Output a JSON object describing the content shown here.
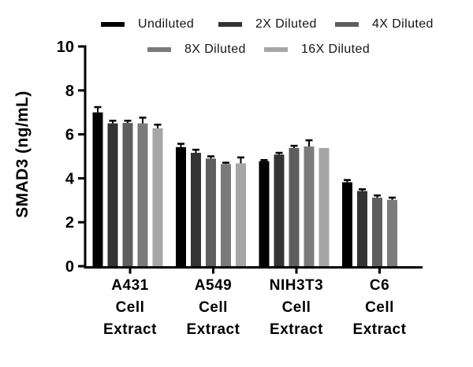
{
  "chart_data": {
    "type": "bar",
    "title": "",
    "ylabel": "SMAD3 (ng/mL)",
    "xlabel": "",
    "ylim": [
      0,
      10
    ],
    "yticks": [
      0,
      2,
      4,
      6,
      8,
      10
    ],
    "grid": false,
    "legend_position": "top",
    "background_color": "#ffffff",
    "axis_color": "#000000",
    "categories": [
      "A431 Cell Extract",
      "A549 Cell Extract",
      "NIH3T3 Cell Extract",
      "C6 Cell Extract"
    ],
    "category_lines": [
      [
        "A431",
        "Cell",
        "Extract"
      ],
      [
        "A549",
        "Cell",
        "Extract"
      ],
      [
        "NIH3T3",
        "Cell",
        "Extract"
      ],
      [
        "C6",
        "Cell",
        "Extract"
      ]
    ],
    "series": [
      {
        "name": "Undiluted",
        "color": "#000000",
        "values": [
          7.0,
          5.42,
          4.78,
          3.82
        ],
        "errors": [
          0.24,
          0.15,
          0.05,
          0.1
        ]
      },
      {
        "name": "2X Diluted",
        "color": "#333333",
        "values": [
          6.5,
          5.16,
          5.08,
          3.42
        ],
        "errors": [
          0.12,
          0.14,
          0.08,
          0.08
        ]
      },
      {
        "name": "4X Diluted",
        "color": "#5e5e5e",
        "values": [
          6.52,
          4.9,
          5.38,
          3.12
        ],
        "errors": [
          0.1,
          0.1,
          0.1,
          0.1
        ]
      },
      {
        "name": "8X Diluted",
        "color": "#7b7b7b",
        "values": [
          6.5,
          4.65,
          5.45,
          3.02
        ],
        "errors": [
          0.26,
          0.06,
          0.28,
          0.1
        ]
      },
      {
        "name": "16X Diluted",
        "color": "#a6a6a6",
        "values": [
          6.28,
          4.68,
          5.38,
          null
        ],
        "errors": [
          0.16,
          0.27,
          0,
          null
        ]
      }
    ]
  }
}
